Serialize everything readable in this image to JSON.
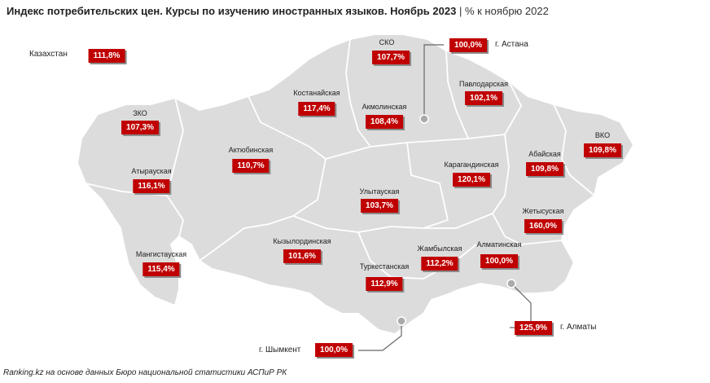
{
  "title": {
    "main": "Индекс потребительских цен. Курсы по изучению иностранных языков. Ноябрь 2023",
    "separator": "|",
    "unit": "% к ноябрю 2022"
  },
  "national": {
    "name": "Казахстан",
    "value": "111,8%"
  },
  "regions": [
    {
      "name": "СКО",
      "value": "107,7%"
    },
    {
      "name": "Костанайская",
      "value": "117,4%"
    },
    {
      "name": "Акмолинская",
      "value": "108,4%"
    },
    {
      "name": "Павлодарская",
      "value": "102,1%"
    },
    {
      "name": "ЗКО",
      "value": "107,3%"
    },
    {
      "name": "Актюбинская",
      "value": "110,7%"
    },
    {
      "name": "Карагандинская",
      "value": "120,1%"
    },
    {
      "name": "Абайская",
      "value": "109,8%"
    },
    {
      "name": "ВКО",
      "value": "109,8%"
    },
    {
      "name": "Атырауская",
      "value": "116,1%"
    },
    {
      "name": "Улытауская",
      "value": "103,7%"
    },
    {
      "name": "Жетысуская",
      "value": "160,0%"
    },
    {
      "name": "Мангистауская",
      "value": "115,4%"
    },
    {
      "name": "Кызылординская",
      "value": "101,6%"
    },
    {
      "name": "Жамбылская",
      "value": "112,2%"
    },
    {
      "name": "Алматинская",
      "value": "100,0%"
    },
    {
      "name": "Туркестанская",
      "value": "112,9%"
    }
  ],
  "cities": [
    {
      "name": "г. Астана",
      "value": "100,0%"
    },
    {
      "name": "г. Алматы",
      "value": "125,9%"
    },
    {
      "name": "г. Шымкент",
      "value": "100,0%"
    }
  ],
  "colors": {
    "land": "#dcdcdc",
    "border": "#ffffff",
    "badge": "#c00000",
    "callout": "#666666"
  },
  "footer": "Ranking.kz на основе данных Бюро национальной статистики АСПиР РК"
}
